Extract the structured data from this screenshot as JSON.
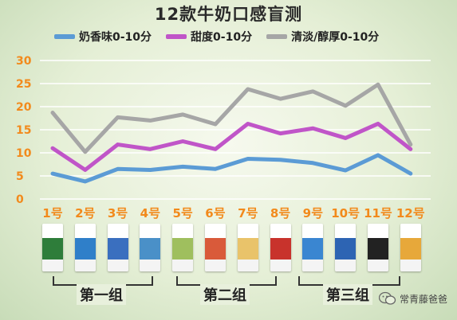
{
  "title": "12款牛奶口感盲测",
  "legend": [
    {
      "label": "奶香味0-10分",
      "color": "#5b9bd5"
    },
    {
      "label": "甜度0-10分",
      "color": "#c055c8"
    },
    {
      "label": "清淡/醇厚0-10分",
      "color": "#a6a6a6"
    }
  ],
  "chart_data": {
    "type": "line",
    "categories": [
      "1号",
      "2号",
      "3号",
      "4号",
      "5号",
      "6号",
      "7号",
      "8号",
      "9号",
      "10号",
      "11号",
      "12号"
    ],
    "ylim": [
      0,
      30
    ],
    "yticks": [
      "0",
      "5",
      "10",
      "15",
      "20",
      "25",
      "30"
    ],
    "grid": true,
    "series": [
      {
        "name": "奶香味0-10分",
        "color": "#5b9bd5",
        "values": [
          5.5,
          3.8,
          6.5,
          6.3,
          7.0,
          6.5,
          8.7,
          8.5,
          7.8,
          6.2,
          9.5,
          5.5
        ]
      },
      {
        "name": "甜度0-10分",
        "color": "#c055c8",
        "values": [
          11.0,
          6.3,
          11.8,
          10.8,
          12.5,
          10.8,
          16.3,
          14.2,
          15.3,
          13.2,
          16.3,
          10.8
        ]
      },
      {
        "name": "清淡/醇厚0-10分",
        "color": "#a6a6a6",
        "values": [
          18.7,
          10.2,
          17.7,
          17.0,
          18.3,
          16.2,
          23.8,
          21.7,
          23.3,
          20.2,
          24.8,
          11.8
        ]
      }
    ]
  },
  "groups": [
    {
      "label": "第一组"
    },
    {
      "label": "第二组"
    },
    {
      "label": "第三组"
    }
  ],
  "cartons": [
    {
      "color": "#2e7d3a"
    },
    {
      "color": "#2f7fc9"
    },
    {
      "color": "#3a6fbf"
    },
    {
      "color": "#4a90c8"
    },
    {
      "color": "#9fbf5e"
    },
    {
      "color": "#d95a3a"
    },
    {
      "color": "#e9c36a"
    },
    {
      "color": "#c8332c"
    },
    {
      "color": "#3a86d1"
    },
    {
      "color": "#2d64b3"
    },
    {
      "color": "#222222"
    },
    {
      "color": "#e7a83a"
    }
  ],
  "watermark": "常青藤爸爸"
}
